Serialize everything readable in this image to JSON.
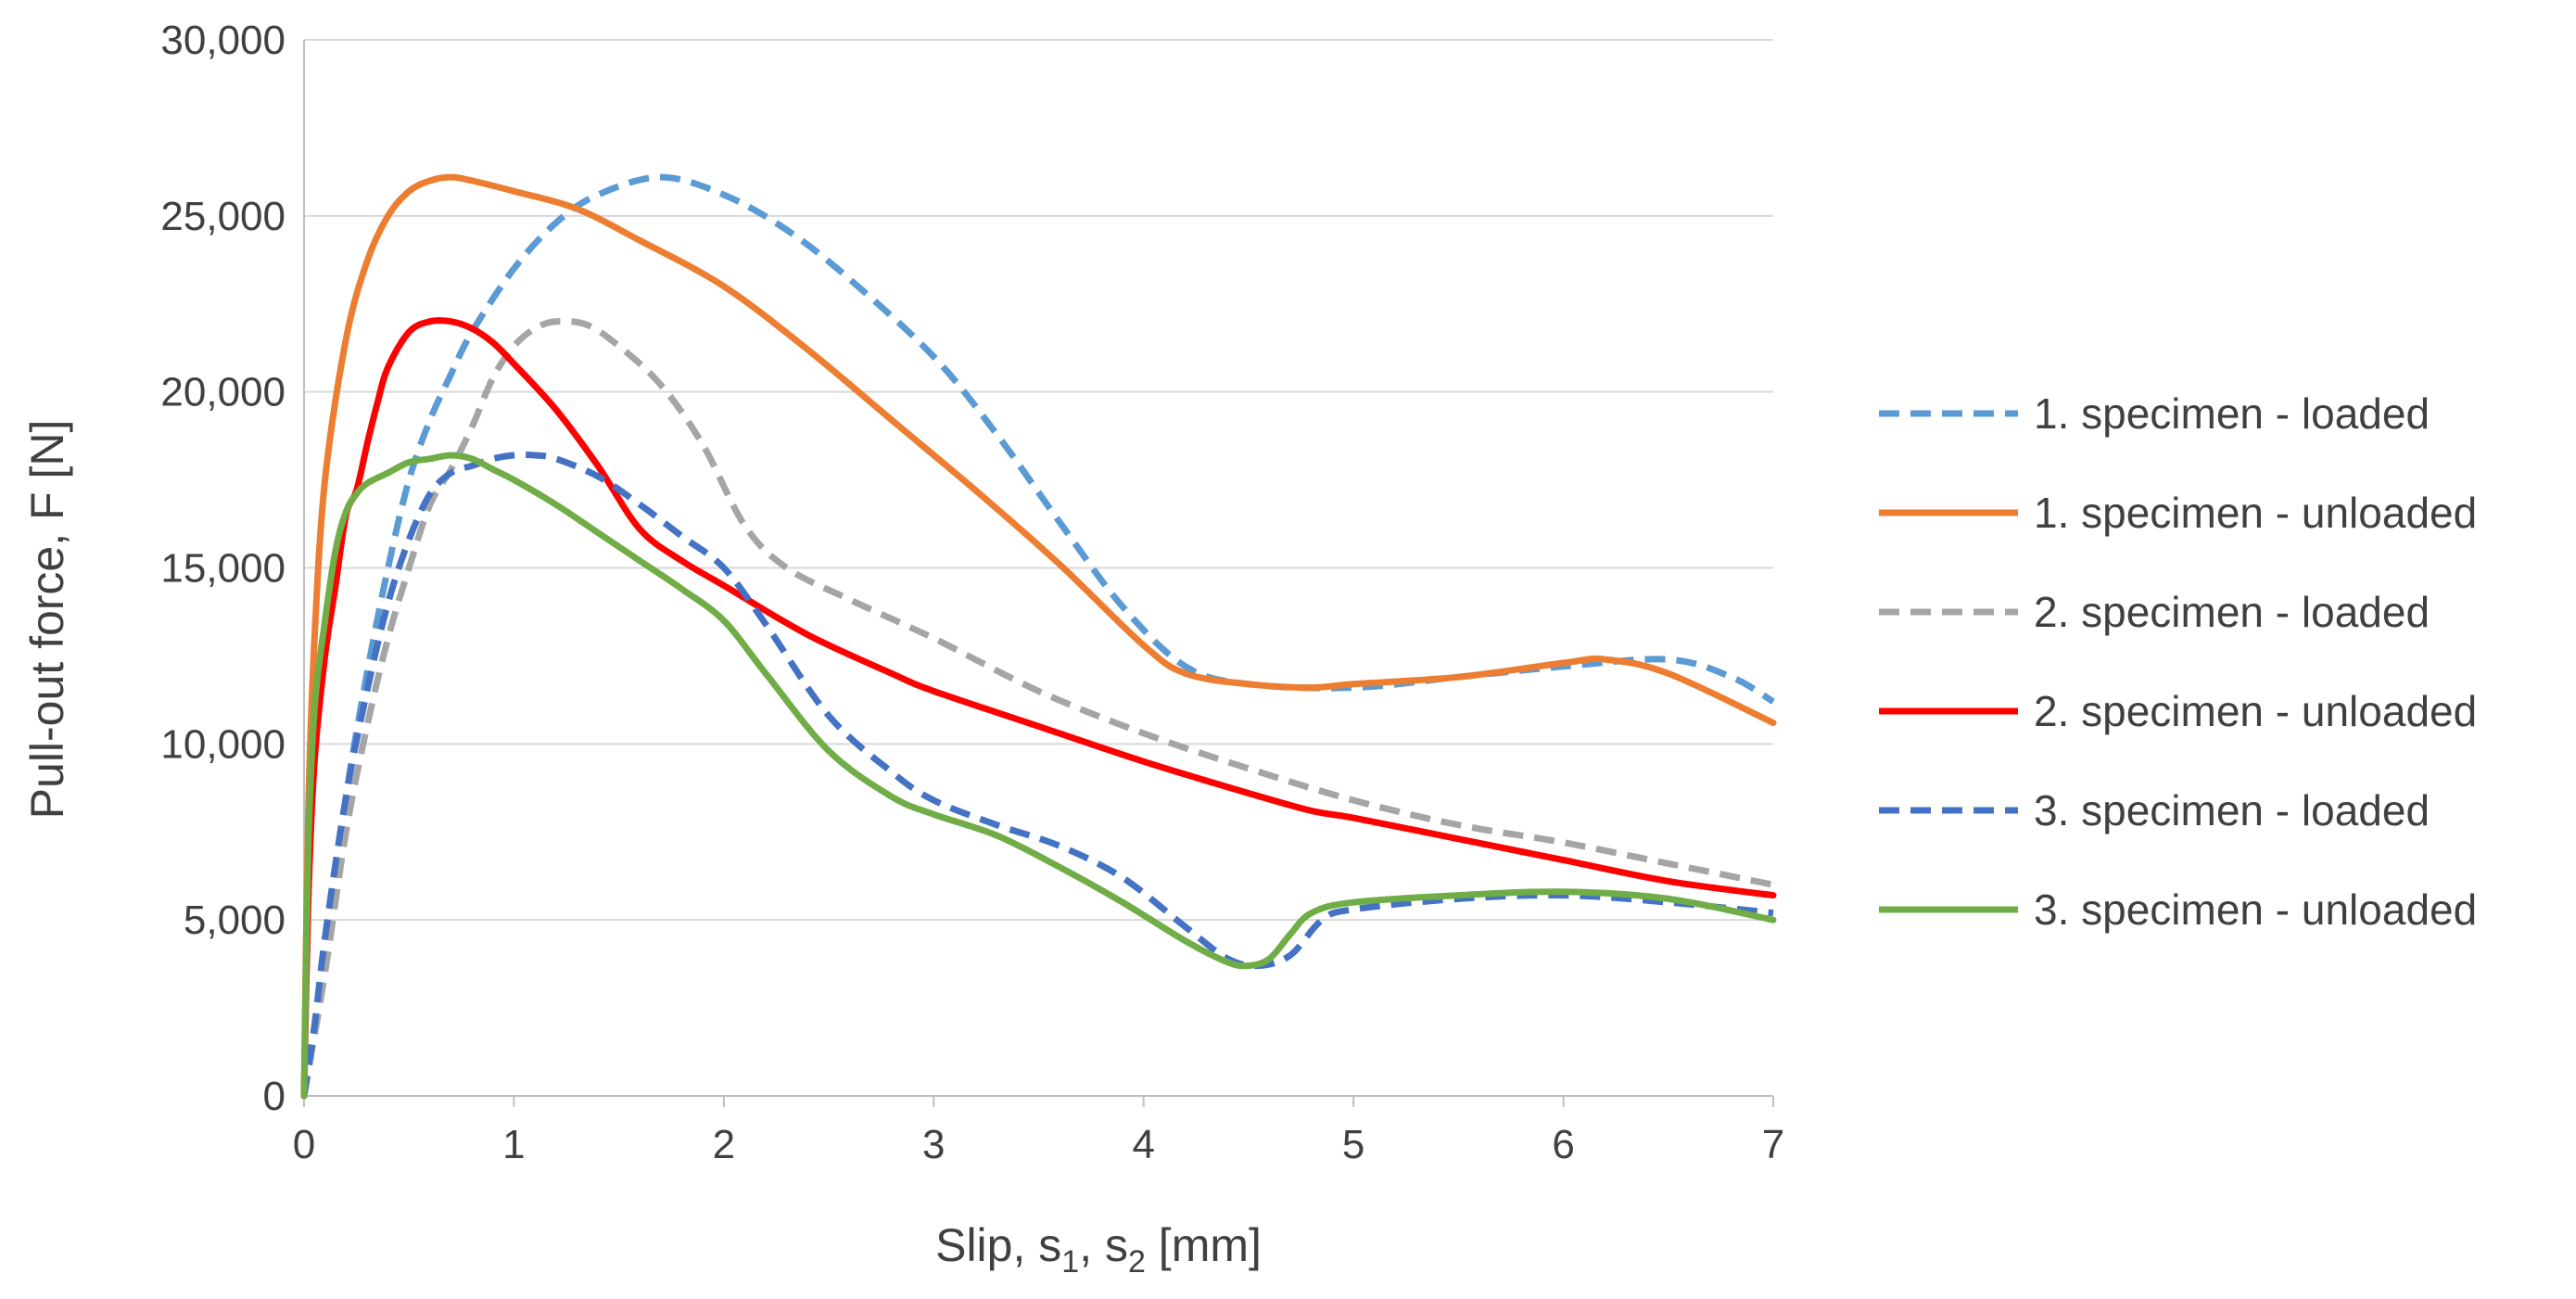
{
  "chart_data": {
    "type": "line",
    "title": "",
    "xlabel": {
      "main": "Slip, s",
      "sub1": "1",
      "mid": ", s",
      "sub2": "2",
      "end": " [mm]"
    },
    "ylabel": "Pull-out force, F [N]",
    "xlim": [
      0,
      7
    ],
    "ylim": [
      0,
      30000
    ],
    "x_ticks": [
      {
        "value": 0,
        "label": "0"
      },
      {
        "value": 1,
        "label": "1"
      },
      {
        "value": 2,
        "label": "2"
      },
      {
        "value": 3,
        "label": "3"
      },
      {
        "value": 4,
        "label": "4"
      },
      {
        "value": 5,
        "label": "5"
      },
      {
        "value": 6,
        "label": "6"
      },
      {
        "value": 7,
        "label": "7"
      }
    ],
    "y_ticks": [
      {
        "value": 0,
        "label": "0"
      },
      {
        "value": 5000,
        "label": "5,000"
      },
      {
        "value": 10000,
        "label": "10,000"
      },
      {
        "value": 15000,
        "label": "15,000"
      },
      {
        "value": 20000,
        "label": "20,000"
      },
      {
        "value": 25000,
        "label": "25,000"
      },
      {
        "value": 30000,
        "label": "30,000"
      }
    ],
    "grid": "horizontal",
    "legend_position": "right",
    "series": [
      {
        "name": "1. specimen - loaded",
        "color": "#5B9BD5",
        "dashed": true,
        "x": [
          0,
          0.1,
          0.2,
          0.3,
          0.4,
          0.5,
          0.6,
          0.7,
          0.8,
          1.0,
          1.2,
          1.4,
          1.7,
          2.0,
          2.3,
          2.6,
          3.0,
          3.3,
          3.6,
          3.9,
          4.2,
          4.5,
          5.0,
          5.5,
          6.0,
          6.5,
          6.8,
          7.0
        ],
        "y": [
          0,
          4000,
          8500,
          12000,
          15000,
          17500,
          19200,
          20500,
          21700,
          23500,
          24800,
          25600,
          26100,
          25600,
          24600,
          23200,
          21000,
          18800,
          16300,
          13900,
          12200,
          11700,
          11600,
          11900,
          12200,
          12400,
          11900,
          11200
        ]
      },
      {
        "name": "1. specimen - unloaded",
        "color": "#ED7D31",
        "dashed": false,
        "x": [
          0,
          0.02,
          0.05,
          0.1,
          0.2,
          0.3,
          0.4,
          0.5,
          0.6,
          0.7,
          0.8,
          1.0,
          1.3,
          1.6,
          2.0,
          2.4,
          2.8,
          3.2,
          3.6,
          4.0,
          4.2,
          4.5,
          4.8,
          5.0,
          5.5,
          6.0,
          6.2,
          6.5,
          7.0
        ],
        "y": [
          0,
          8000,
          13000,
          17500,
          21500,
          23700,
          25000,
          25700,
          26000,
          26100,
          26000,
          25700,
          25200,
          24300,
          23000,
          21200,
          19200,
          17200,
          15100,
          12800,
          12000,
          11700,
          11600,
          11700,
          11900,
          12300,
          12400,
          12000,
          10600
        ]
      },
      {
        "name": "2. specimen - loaded",
        "color": "#A5A5A5",
        "dashed": true,
        "x": [
          0,
          0.1,
          0.2,
          0.3,
          0.4,
          0.5,
          0.6,
          0.7,
          0.8,
          0.9,
          1.0,
          1.1,
          1.2,
          1.35,
          1.5,
          1.7,
          1.9,
          2.1,
          2.3,
          2.6,
          3.0,
          3.5,
          4.0,
          4.5,
          5.0,
          5.5,
          6.0,
          6.5,
          7.0
        ],
        "y": [
          0,
          3500,
          7500,
          10500,
          13000,
          15000,
          16800,
          17800,
          19000,
          20400,
          21300,
          21800,
          22000,
          21900,
          21300,
          20200,
          18500,
          16200,
          15000,
          14100,
          13000,
          11500,
          10300,
          9300,
          8400,
          7700,
          7200,
          6600,
          6000
        ]
      },
      {
        "name": "2. specimen - unloaded",
        "color": "#FF0000",
        "dashed": false,
        "x": [
          0,
          0.02,
          0.05,
          0.1,
          0.15,
          0.2,
          0.25,
          0.3,
          0.35,
          0.4,
          0.5,
          0.6,
          0.7,
          0.8,
          0.9,
          1.0,
          1.2,
          1.4,
          1.6,
          1.8,
          2.0,
          2.4,
          2.8,
          3.0,
          3.5,
          4.0,
          4.5,
          4.8,
          5.0,
          5.5,
          6.0,
          6.5,
          7.0
        ],
        "y": [
          0,
          5500,
          9500,
          12500,
          14500,
          16500,
          17200,
          18500,
          19700,
          20700,
          21700,
          22000,
          22000,
          21800,
          21400,
          20800,
          19500,
          17900,
          16100,
          15200,
          14500,
          13100,
          12000,
          11500,
          10500,
          9500,
          8600,
          8100,
          7900,
          7300,
          6700,
          6100,
          5700
        ]
      },
      {
        "name": "3. specimen - loaded",
        "color": "#4472C4",
        "dashed": true,
        "x": [
          0,
          0.05,
          0.1,
          0.2,
          0.3,
          0.4,
          0.5,
          0.6,
          0.7,
          0.8,
          0.9,
          1.0,
          1.1,
          1.2,
          1.4,
          1.6,
          1.8,
          2.0,
          2.2,
          2.5,
          2.8,
          3.0,
          3.3,
          3.6,
          3.9,
          4.2,
          4.4,
          4.55,
          4.7,
          4.85,
          5.0,
          5.5,
          6.0,
          6.5,
          7.0
        ],
        "y": [
          0,
          2000,
          4500,
          8500,
          11500,
          14000,
          15800,
          17100,
          17700,
          17900,
          18100,
          18200,
          18200,
          18100,
          17600,
          16800,
          15900,
          15000,
          13400,
          10800,
          9200,
          8400,
          7700,
          7100,
          6200,
          4800,
          3900,
          3700,
          4000,
          5000,
          5300,
          5600,
          5700,
          5500,
          5200
        ]
      },
      {
        "name": "3. specimen - unloaded",
        "color": "#70AD47",
        "dashed": false,
        "x": [
          0,
          0.02,
          0.05,
          0.1,
          0.15,
          0.2,
          0.25,
          0.3,
          0.4,
          0.5,
          0.6,
          0.7,
          0.8,
          0.9,
          1.0,
          1.2,
          1.4,
          1.6,
          1.8,
          2.0,
          2.2,
          2.5,
          2.8,
          3.0,
          3.3,
          3.6,
          3.9,
          4.2,
          4.4,
          4.5,
          4.6,
          4.7,
          4.8,
          5.0,
          5.5,
          6.0,
          6.5,
          7.0
        ],
        "y": [
          0,
          7000,
          11000,
          13500,
          15500,
          16600,
          17100,
          17400,
          17700,
          18000,
          18100,
          18200,
          18100,
          17800,
          17500,
          16800,
          16000,
          15200,
          14400,
          13500,
          12000,
          9800,
          8500,
          8000,
          7400,
          6500,
          5500,
          4400,
          3800,
          3700,
          3900,
          4600,
          5200,
          5500,
          5700,
          5800,
          5600,
          5000
        ]
      }
    ]
  }
}
